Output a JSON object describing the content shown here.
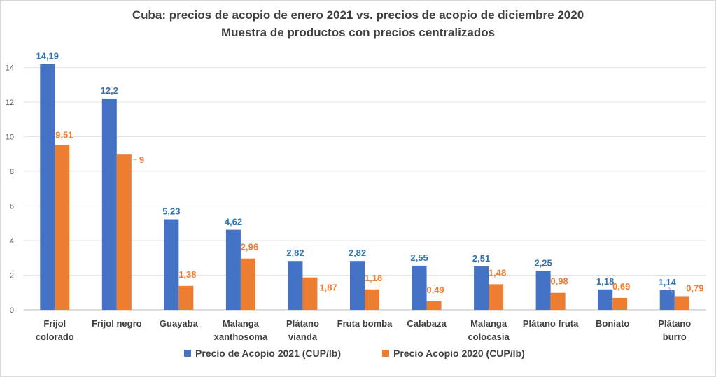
{
  "chart_data": {
    "type": "bar",
    "title": "Cuba: precios de acopio de enero 2021 vs. precios de acopio de diciembre 2020",
    "subtitle": "Muestra de productos con precios centralizados",
    "categories": [
      [
        "Frijol",
        "colorado"
      ],
      [
        "Frijol negro"
      ],
      [
        "Guayaba"
      ],
      [
        "Malanga",
        "xanthosoma"
      ],
      [
        "Plátano",
        "vianda"
      ],
      [
        "Fruta bomba"
      ],
      [
        "Calabaza"
      ],
      [
        "Malanga",
        "colocasia"
      ],
      [
        "Plátano fruta"
      ],
      [
        "Boniato"
      ],
      [
        "Plátano",
        "burro"
      ]
    ],
    "series": [
      {
        "name": "Precio de Acopio 2021  (CUP/lb)",
        "color": "#4472c4",
        "label_color": "#2e75b6",
        "values": [
          14.19,
          12.2,
          5.23,
          4.62,
          2.82,
          2.82,
          2.55,
          2.51,
          2.25,
          1.18,
          1.14
        ],
        "labels": [
          "14,19",
          "12,2",
          "5,23",
          "4,62",
          "2,82",
          "2,82",
          "2,55",
          "2,51",
          "2,25",
          "1,18",
          "1,14"
        ]
      },
      {
        "name": "Precio Acopio 2020 (CUP/lb)",
        "color": "#ed7d31",
        "label_color": "#ed7d31",
        "values": [
          9.51,
          9,
          1.38,
          2.96,
          1.87,
          1.18,
          0.49,
          1.48,
          0.98,
          0.69,
          0.79
        ],
        "labels": [
          "9,51",
          "9",
          "1,38",
          "2,96",
          "1,87",
          "1,18",
          "0,49",
          "1,48",
          "0,98",
          "0,69",
          "0,79"
        ]
      }
    ],
    "yticks": [
      0,
      2,
      4,
      6,
      8,
      10,
      12,
      14
    ],
    "ylim": [
      0,
      14.5
    ],
    "grid": true,
    "legend": "bottom"
  }
}
